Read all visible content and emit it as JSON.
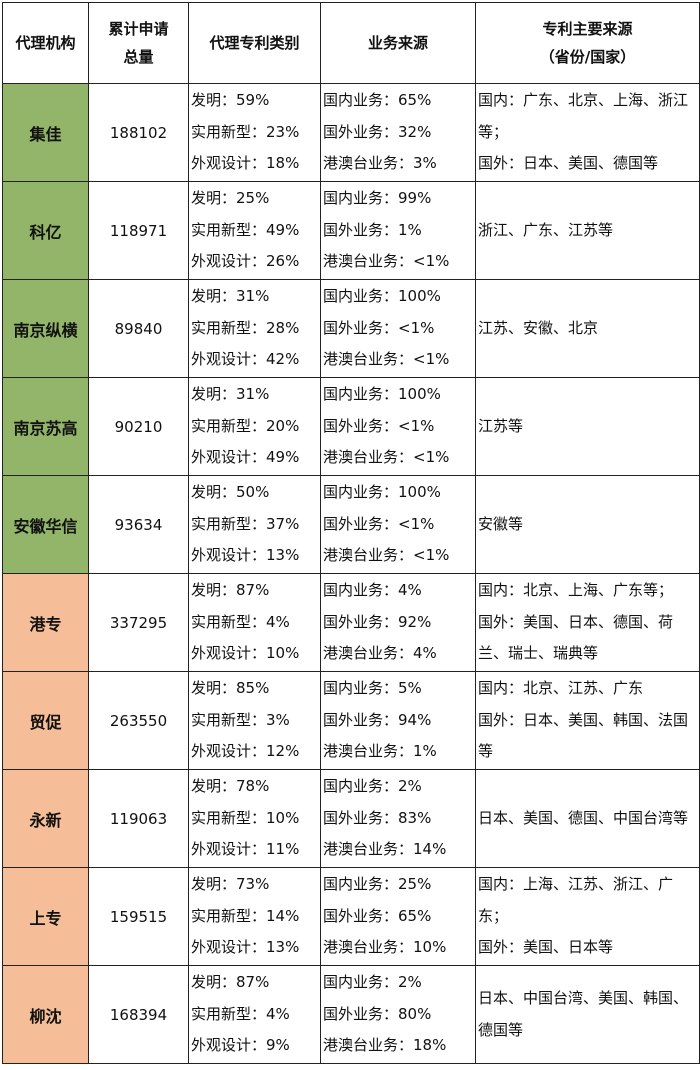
{
  "headers": {
    "agency": "代理机构",
    "total": "累计申请总量",
    "category": "代理专利类别",
    "business": "业务来源",
    "source_line1": "专利主要来源",
    "source_line2": "（省份/国家）"
  },
  "colors": {
    "domestic_group": "#93b56a",
    "foreign_group": "#f5be98"
  },
  "rows": [
    {
      "agency": "集佳",
      "total": "188102",
      "category": [
        "发明：59%",
        "实用新型：23%",
        "外观设计：18%"
      ],
      "business": [
        "国内业务：65%",
        "国外业务：32%",
        "港澳台业务：3%"
      ],
      "source": [
        "国内：广东、北京、上海、浙江等；",
        "国外：日本、美国、德国等"
      ]
    },
    {
      "agency": "科亿",
      "total": "118971",
      "category": [
        "发明：25%",
        "实用新型：49%",
        "外观设计：26%"
      ],
      "business": [
        "国内业务：99%",
        "国外业务：1%",
        "港澳台业务：<1%"
      ],
      "source": [
        "浙江、广东、江苏等"
      ]
    },
    {
      "agency": "南京纵横",
      "total": "89840",
      "category": [
        "发明：31%",
        "实用新型：28%",
        "外观设计：42%"
      ],
      "business": [
        "国内业务：100%",
        "国外业务：<1%",
        "港澳台业务：<1%"
      ],
      "source": [
        "江苏、安徽、北京"
      ]
    },
    {
      "agency": "南京苏高",
      "total": "90210",
      "category": [
        "发明：31%",
        "实用新型：20%",
        "外观设计：49%"
      ],
      "business": [
        "国内业务：100%",
        "国外业务：<1%",
        "港澳台业务：<1%"
      ],
      "source": [
        "江苏等"
      ]
    },
    {
      "agency": "安徽华信",
      "total": "93634",
      "category": [
        "发明：50%",
        "实用新型：37%",
        "外观设计：13%"
      ],
      "business": [
        "国内业务：100%",
        "国外业务：<1%",
        "港澳台业务：<1%"
      ],
      "source": [
        "安徽等"
      ]
    },
    {
      "agency": "港专",
      "total": "337295",
      "category": [
        "发明：87%",
        "实用新型：4%",
        "外观设计：10%"
      ],
      "business": [
        "国内业务：4%",
        "国外业务：92%",
        "港澳台业务：4%"
      ],
      "source": [
        "国内：北京、上海、广东等；",
        "国外：美国、日本、德国、荷兰、瑞士、瑞典等"
      ]
    },
    {
      "agency": "贸促",
      "total": "263550",
      "category": [
        "发明：85%",
        "实用新型：3%",
        "外观设计：12%"
      ],
      "business": [
        "国内业务：5%",
        "国外业务：94%",
        "港澳台业务：1%"
      ],
      "source": [
        "国内：北京、江苏、广东",
        "国外：日本、美国、韩国、法国等"
      ]
    },
    {
      "agency": "永新",
      "total": "119063",
      "category": [
        "发明：78%",
        "实用新型：10%",
        "外观设计：11%"
      ],
      "business": [
        "国内业务：2%",
        "国外业务：83%",
        "港澳台业务：14%"
      ],
      "source": [
        "日本、美国、德国、中国台湾等"
      ]
    },
    {
      "agency": "上专",
      "total": "159515",
      "category": [
        "发明：73%",
        "实用新型：14%",
        "外观设计：13%"
      ],
      "business": [
        "国内业务：25%",
        "国外业务：65%",
        "港澳台业务：10%"
      ],
      "source": [
        "国内：上海、江苏、浙江、广东；",
        "国外：美国、日本等"
      ]
    },
    {
      "agency": "柳沈",
      "total": "168394",
      "category": [
        "发明：87%",
        "实用新型：4%",
        "外观设计：9%"
      ],
      "business": [
        "国内业务：2%",
        "国外业务：80%",
        "港澳台业务：18%"
      ],
      "source": [
        "日本、中国台湾、美国、韩国、德国等"
      ]
    }
  ]
}
